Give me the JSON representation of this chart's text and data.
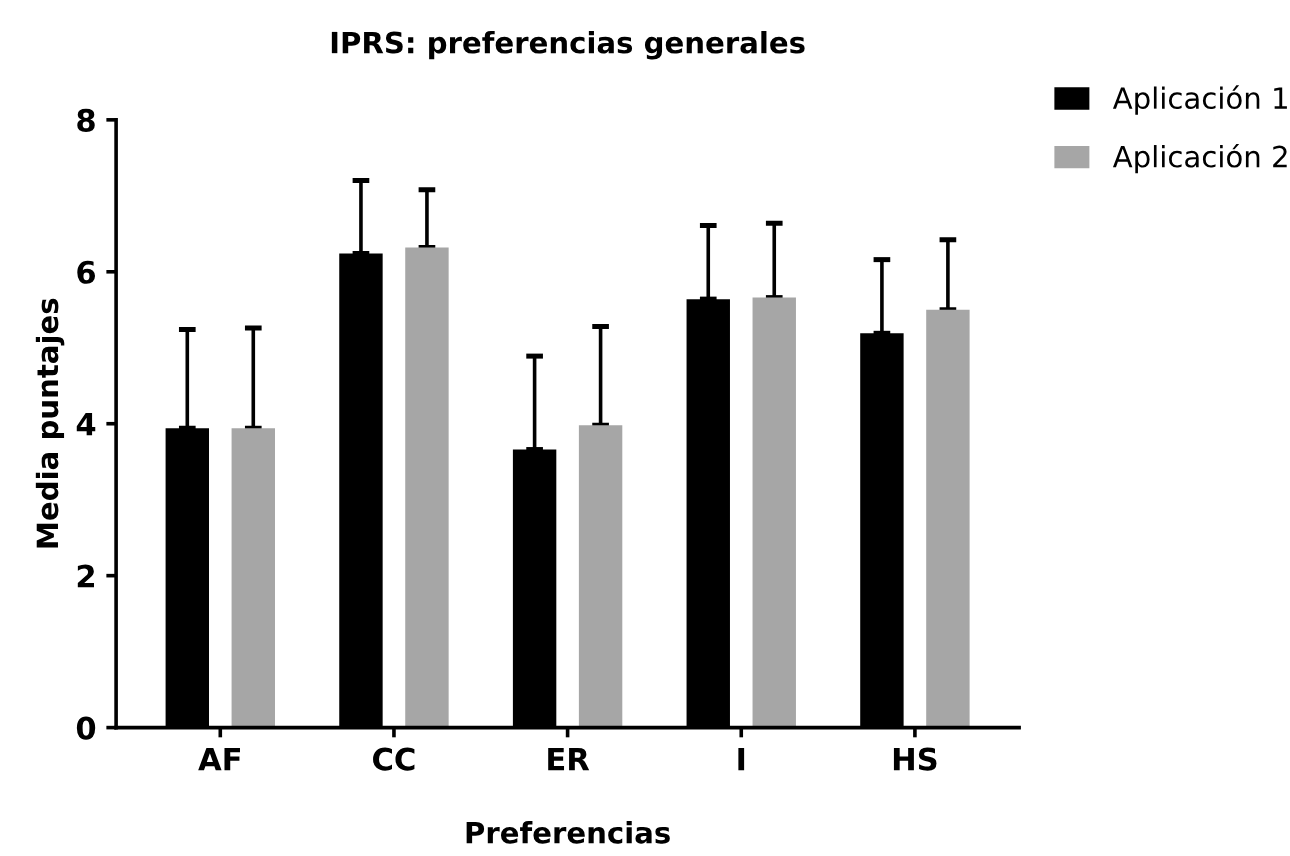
{
  "chart_data": {
    "type": "bar",
    "title": "IPRS: preferencias generales",
    "xlabel": "Preferencias",
    "ylabel": "Media puntajes",
    "categories": [
      "AF",
      "CC",
      "ER",
      "I",
      "HS"
    ],
    "series": [
      {
        "name": "Aplicación 1",
        "color": "#000000",
        "values": [
          3.94,
          6.24,
          3.66,
          5.64,
          5.19
        ],
        "errors": [
          [
            3.94,
            5.24
          ],
          [
            6.24,
            7.2
          ],
          [
            3.66,
            4.89
          ],
          [
            5.64,
            6.61
          ],
          [
            5.19,
            6.16
          ]
        ]
      },
      {
        "name": "Aplicación 2",
        "color": "#a6a6a6",
        "values": [
          3.94,
          6.32,
          3.98,
          5.66,
          5.5
        ],
        "errors": [
          [
            3.94,
            5.26
          ],
          [
            6.32,
            7.08
          ],
          [
            3.98,
            5.28
          ],
          [
            5.66,
            6.64
          ],
          [
            5.5,
            6.42
          ]
        ]
      }
    ],
    "ylim": [
      0,
      8
    ],
    "yticks": [
      0,
      2,
      4,
      6,
      8
    ],
    "grid": false,
    "legend": "top right"
  }
}
